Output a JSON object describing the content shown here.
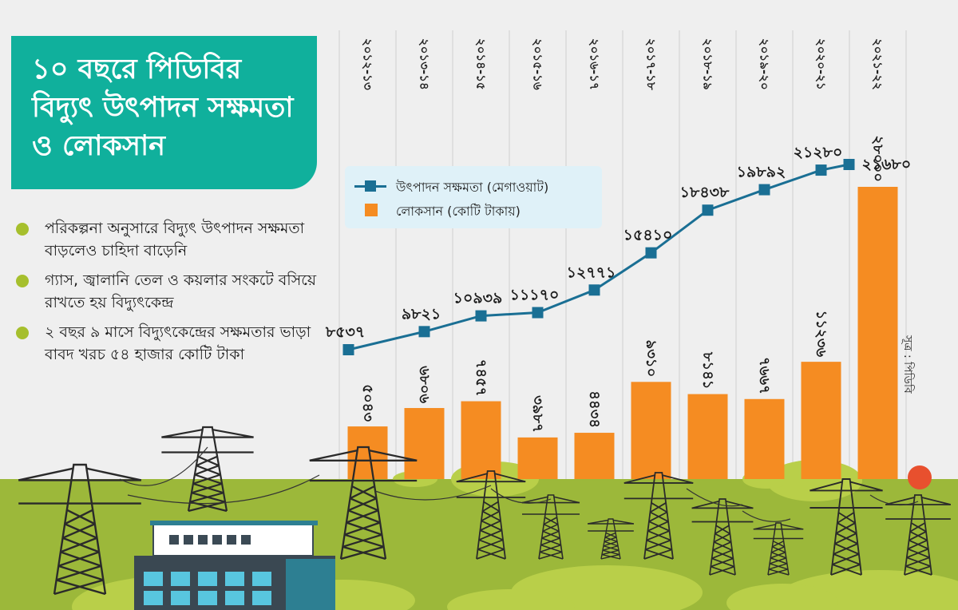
{
  "title": "১০ বছরে পিডিবির বিদ্যুৎ উৎপাদন সক্ষমতা ও লোকসান",
  "bullets": [
    "পরিকল্পনা অনুসারে বিদ্যুৎ উৎপাদন সক্ষমতা বাড়লেও চাহিদা বাড়েনি",
    "গ্যাস, জ্বালানি তেল ও কয়লার সংকটে বসিয়ে রাখতে হয় বিদ্যুৎকেন্দ্র",
    "২ বছর ৯ মাসে বিদ্যুৎকেন্দ্রের সক্ষমতার ভাড়া বাবদ খরচ ৫৪ হাজার কোটি টাকা"
  ],
  "source": "সূত্র : পিডিবি",
  "colors": {
    "title_bg": "#10b09c",
    "line": "#1a6f94",
    "bar": "#f58c22",
    "ground": "#9cb83a",
    "bullet": "#a6bf2d",
    "legend_bg": "#dff1f8",
    "background": "#efefef"
  },
  "chart_data": {
    "type": "bar",
    "categories": [
      "২০১২-১৩",
      "২০১৩-১৪",
      "২০১৪-১৫",
      "২০১৫-১৬",
      "২০১৬-১৭",
      "২০১৭-১৮",
      "২০১৮-১৯",
      "২০১৯-২০",
      "২০২০-২১",
      "২০২১-২২"
    ],
    "series": [
      {
        "name": "উৎপাদন সক্ষমতা (মেগাওয়াট)",
        "type": "line",
        "values": [
          8537,
          9821,
          10939,
          11170,
          12771,
          15410,
          18438,
          19892,
          21280,
          21680
        ],
        "labels": [
          "৮৫৩৭",
          "৯৮২১",
          "১০৯৩৯",
          "১১১৭০",
          "১২৭৭১",
          "১৫৪১০",
          "১৮৪৩৮",
          "১৯৮৯২",
          "২১২৮০",
          "২১৬৮০"
        ]
      },
      {
        "name": "লোকসান (কোটি টাকায়)",
        "type": "bar",
        "values": [
          5043,
          6806,
          7457,
          3987,
          4434,
          9310,
          8141,
          7667,
          11236,
          28000
        ],
        "labels": [
          "৫০৪৩",
          "৬৮০৬",
          "৭৪৫৭",
          "৩৯৮৭",
          "৪৪৩৪",
          "৯৩১০",
          "৮১৪১",
          "৭৬৬৭",
          "১১২৩৬",
          "২৮০০০"
        ]
      }
    ],
    "legend": "top-left of plot area",
    "grid": false
  }
}
